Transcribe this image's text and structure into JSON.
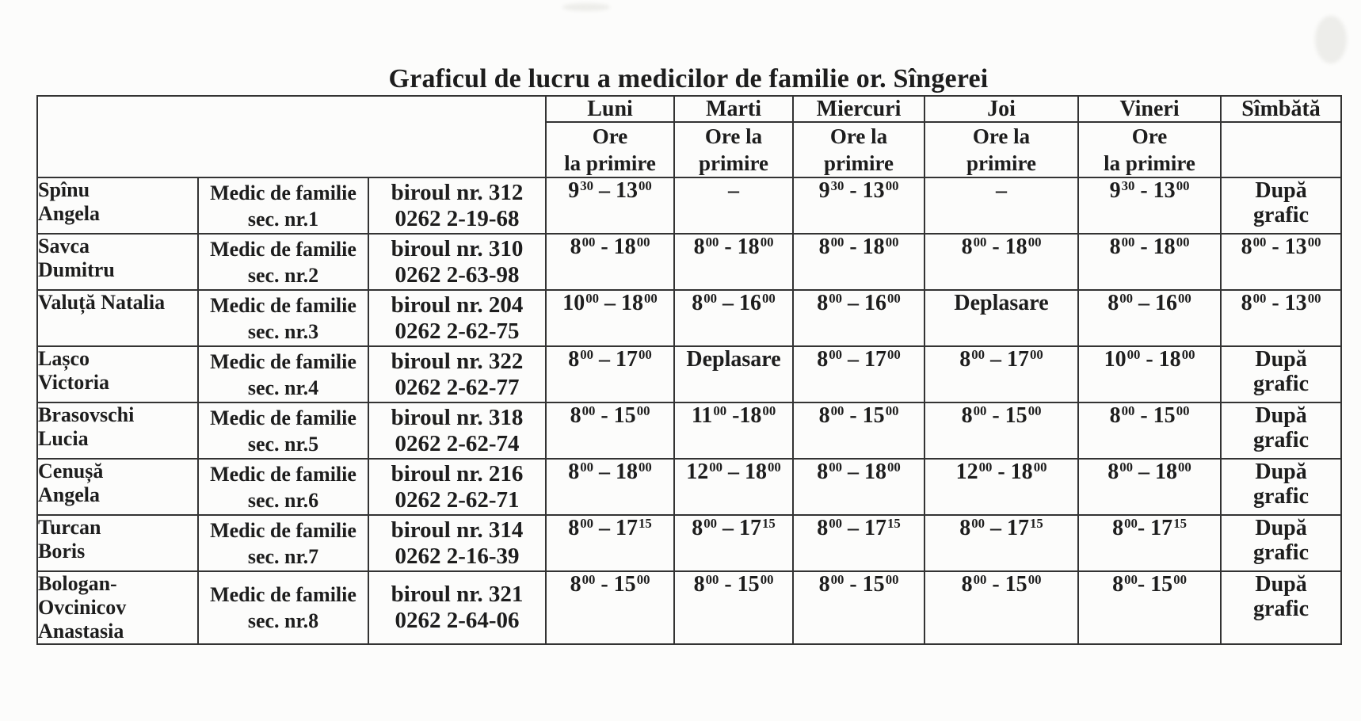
{
  "page": {
    "background": "#fcfcfb",
    "ink": "#1d1d1d",
    "border_color": "#333333"
  },
  "title": "Graficul de lucru a medicilor de familie or. Sîngerei",
  "table": {
    "corner_cell": "",
    "day_headers": [
      "Luni",
      "Marti",
      "Miercuri",
      "Joi",
      "Vineri",
      "Sîmbătă"
    ],
    "day_subheaders": [
      "Ore\nla primire",
      "Ore la\nprimire",
      "Ore la\nprimire",
      "Ore la\nprimire",
      "Ore\nla primire",
      ""
    ],
    "rows": [
      {
        "name": "Spînu\nAngela",
        "role": "Medic de familie\nsec. nr.1",
        "office": "biroul nr. 312\n0262 2-19-68",
        "schedule": [
          "9^30 – 13^00",
          "–",
          "9^30  - 13^00",
          "–",
          "9^30  - 13^00",
          "După\ngrafic"
        ]
      },
      {
        "name": "Savca\nDumitru",
        "role": "Medic de familie\nsec. nr.2",
        "office": "biroul nr. 310\n0262 2-63-98",
        "schedule": [
          "8^00 - 18^00",
          "8^00 - 18^00",
          "8^00 - 18^00",
          "8^00 - 18^00",
          "8^00 - 18^00",
          "8^00  - 13^00"
        ]
      },
      {
        "name": "Valuță Natalia",
        "role": "Medic de familie\nsec. nr.3",
        "office": "biroul nr. 204\n0262 2-62-75",
        "schedule": [
          "10^00 – 18^00",
          "8^00 – 16^00",
          "8^00 – 16^00",
          "Deplasare",
          "8^00 – 16^00",
          "8^00  - 13^00"
        ]
      },
      {
        "name": "Lașco\nVictoria",
        "role": "Medic de familie\nsec. nr.4",
        "office": "biroul nr. 322\n0262 2-62-77",
        "schedule": [
          "8^00 – 17^00",
          "Deplasare",
          "8^00 – 17^00",
          "8^00 – 17^00",
          "10^00 - 18^00",
          "După\ngrafic"
        ]
      },
      {
        "name": "Brasovschi\nLucia",
        "role": "Medic de familie\nsec. nr.5",
        "office": "biroul nr. 318\n0262 2-62-74",
        "schedule": [
          "8^00 - 15^00",
          "11^00 -18^00",
          "8^00 - 15^00",
          "8^00 - 15^00",
          "8^00 - 15^00",
          "După\ngrafic"
        ]
      },
      {
        "name": "Cenușă\nAngela",
        "role": "Medic de familie\nsec. nr.6",
        "office": "biroul nr. 216\n0262 2-62-71",
        "schedule": [
          "8^00 – 18^00",
          "12^00 – 18^00",
          "8^00 – 18^00",
          "12^00 - 18^00",
          "8^00 – 18^00",
          "După\ngrafic"
        ]
      },
      {
        "name": "Turcan\nBoris",
        "role": "Medic de familie\nsec. nr.7",
        "office": "biroul nr. 314\n0262 2-16-39",
        "schedule": [
          "8^00 – 17^15",
          "8^00 – 17^15",
          "8^00 – 17^15",
          "8^00 – 17^15",
          "8^00- 17^15",
          "După\ngrafic"
        ]
      },
      {
        "name": "Bologan-\nOvcinicov\nAnastasia",
        "role": "Medic de familie\nsec. nr.8",
        "office": "biroul nr. 321\n0262 2-64-06",
        "schedule": [
          "8^00 - 15^00",
          "8^00 - 15^00",
          "8^00 - 15^00",
          "8^00 - 15^00",
          "8^00- 15^00",
          "După\ngrafic"
        ]
      }
    ]
  }
}
